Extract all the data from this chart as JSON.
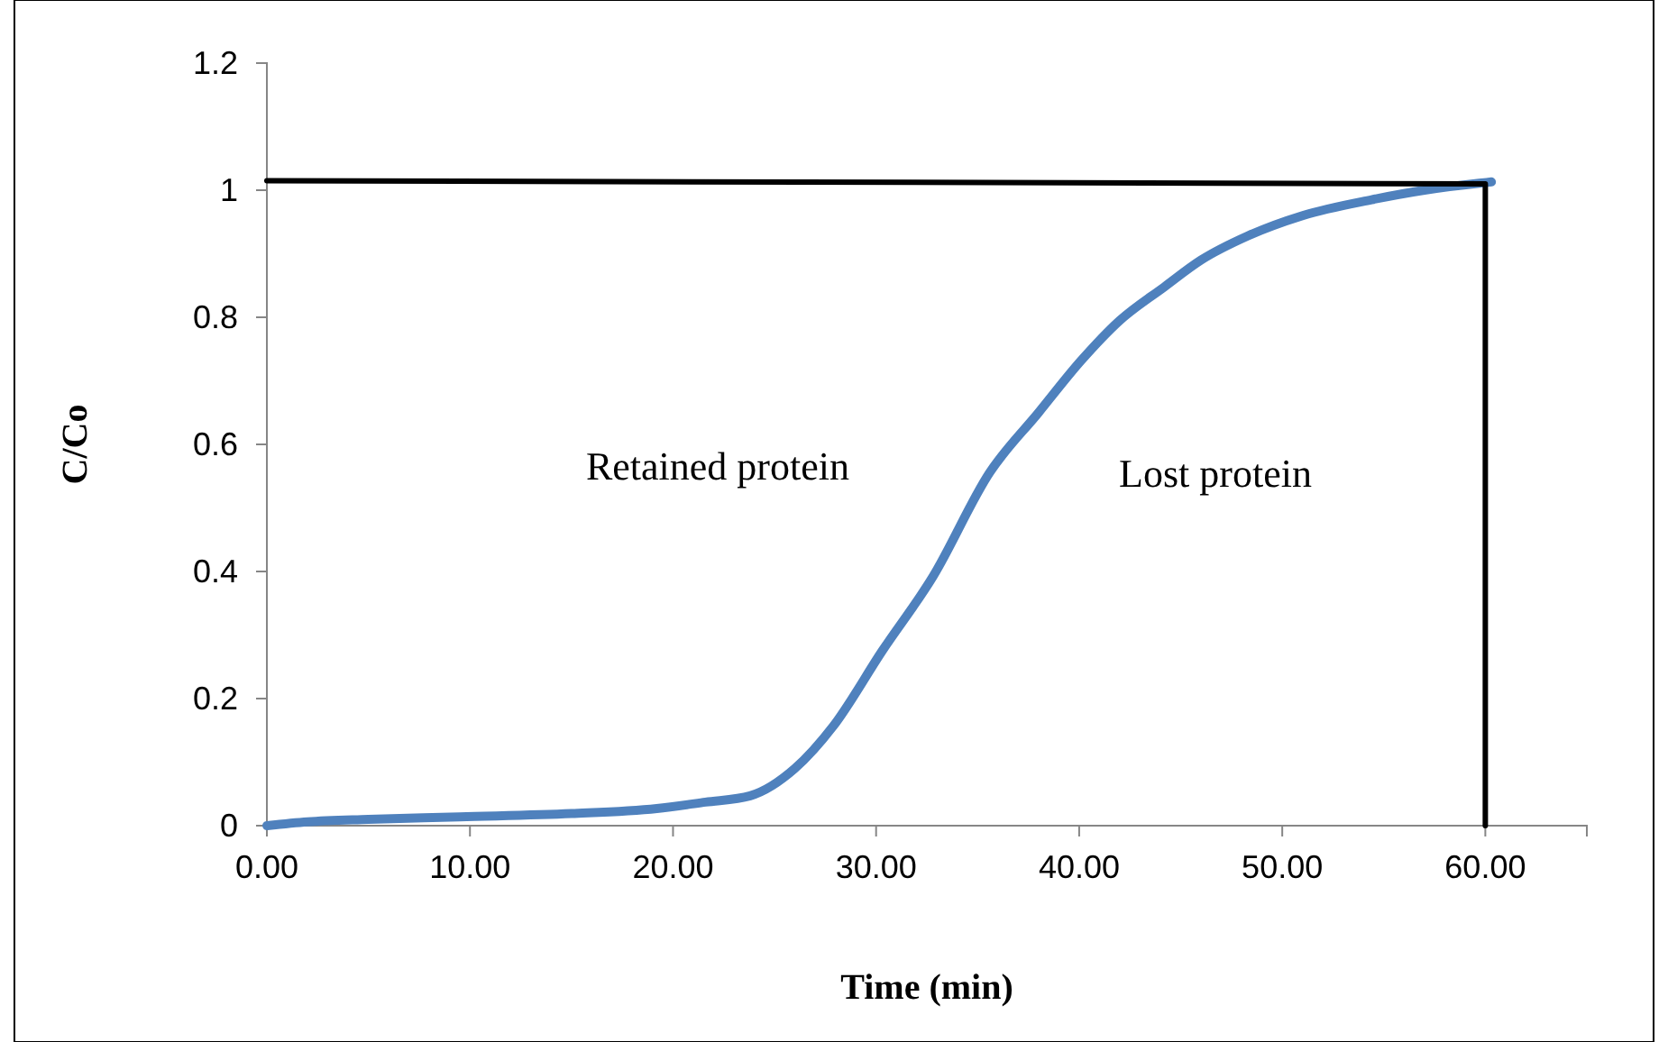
{
  "chart_data": {
    "type": "line",
    "xlabel": "Time (min)",
    "ylabel": "C/Co",
    "xlim": [
      0,
      65
    ],
    "ylim": [
      0,
      1.2
    ],
    "xticks": [
      {
        "value": 0,
        "label": "0.00"
      },
      {
        "value": 10,
        "label": "10.00"
      },
      {
        "value": 20,
        "label": "20.00"
      },
      {
        "value": 30,
        "label": "30.00"
      },
      {
        "value": 40,
        "label": "40.00"
      },
      {
        "value": 50,
        "label": "50.00"
      },
      {
        "value": 60,
        "label": "60.00"
      }
    ],
    "yticks": [
      0,
      0.2,
      0.4,
      0.6,
      0.8,
      1,
      1.2
    ],
    "grid": false,
    "annotations": [
      "Retained protein",
      "Lost protein"
    ],
    "series": [
      {
        "color": "#4f81bd",
        "x": [
          0,
          2,
          5,
          9.5,
          15,
          19.2,
          21.6,
          23.8,
          26,
          27.9,
          30.3,
          32.8,
          35.6,
          38,
          40.1,
          42,
          44.2,
          46,
          48.3,
          51,
          54.4,
          57,
          59.7,
          60.3
        ],
        "values": [
          0,
          0.006,
          0.01,
          0.014,
          0.019,
          0.027,
          0.037,
          0.047,
          0.09,
          0.157,
          0.275,
          0.392,
          0.556,
          0.65,
          0.732,
          0.795,
          0.848,
          0.89,
          0.928,
          0.96,
          0.985,
          1.0,
          1.011,
          1.013
        ]
      },
      {
        "color": "#000000",
        "x": [
          0,
          60,
          60
        ],
        "values": [
          1.015,
          1.01,
          0
        ]
      }
    ]
  }
}
